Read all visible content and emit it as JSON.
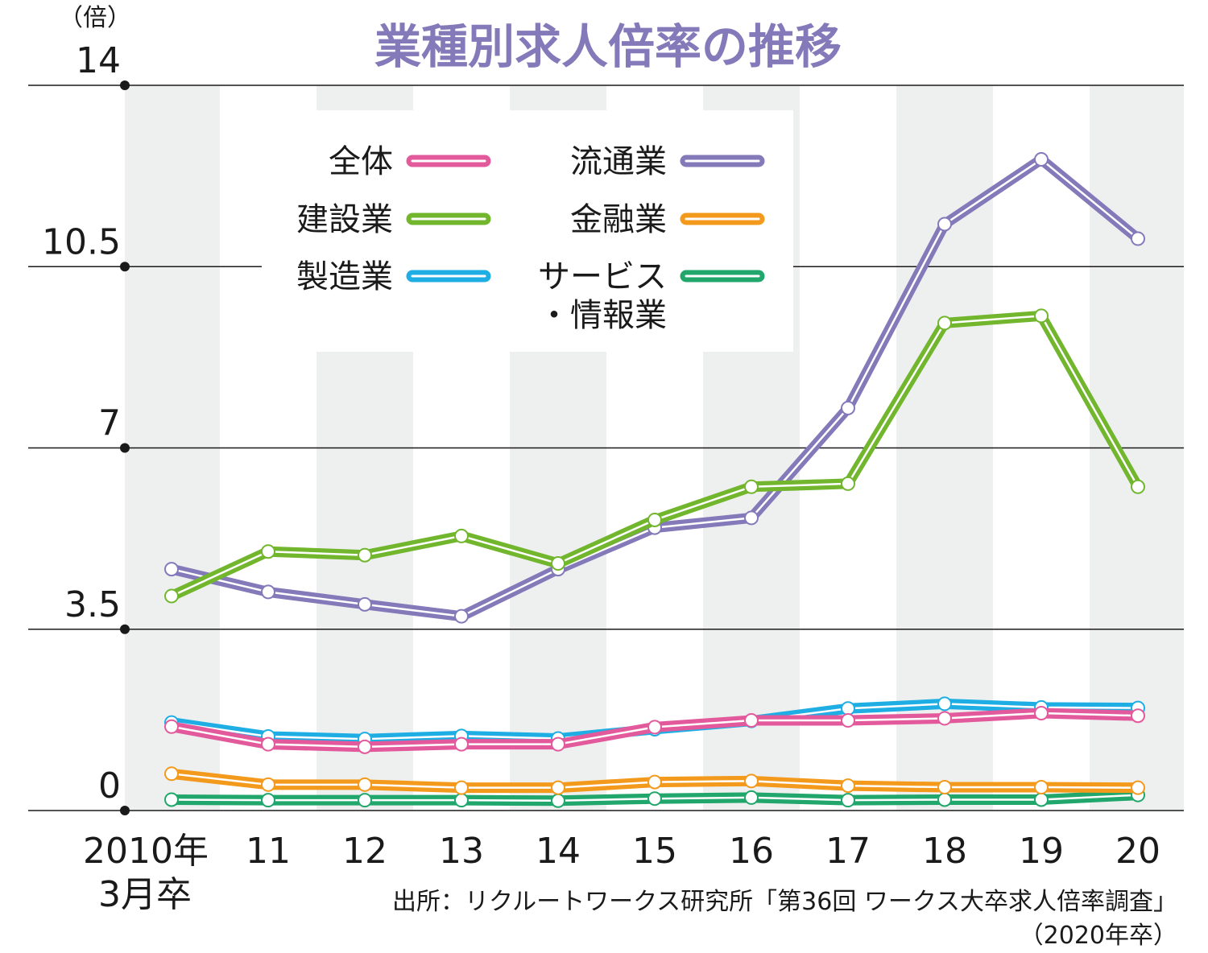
{
  "chart_data": {
    "type": "line",
    "title": "業種別求人倍率の推移",
    "yunit": "（倍）",
    "x_labels": [
      "2010年",
      "11",
      "12",
      "13",
      "14",
      "15",
      "16",
      "17",
      "18",
      "19",
      "20"
    ],
    "x_label_sub": "3月卒",
    "y_ticks": [
      "0",
      "3.5",
      "7",
      "10.5",
      "14"
    ],
    "y_tick_values": [
      0,
      3.5,
      7,
      10.5,
      14
    ],
    "ylim": [
      0,
      14
    ],
    "grid": "horizontal",
    "background": "alternating-column-bands",
    "series": [
      {
        "name": "流通業",
        "color": "#8479b9",
        "values": [
          4.66,
          4.22,
          3.98,
          3.75,
          4.66,
          5.46,
          5.65,
          7.77,
          11.32,
          12.57,
          11.04
        ]
      },
      {
        "name": "建設業",
        "color": "#72b62e",
        "values": [
          4.14,
          5.0,
          4.93,
          5.3,
          4.77,
          5.61,
          6.25,
          6.31,
          9.41,
          9.55,
          6.25
        ]
      },
      {
        "name": "製造業",
        "color": "#1eaee3",
        "values": [
          1.7,
          1.43,
          1.38,
          1.44,
          1.39,
          1.57,
          1.73,
          1.97,
          2.06,
          1.99,
          1.98
        ]
      },
      {
        "name": "全体",
        "color": "#e35a9c",
        "values": [
          1.62,
          1.28,
          1.23,
          1.28,
          1.28,
          1.61,
          1.74,
          1.74,
          1.78,
          1.88,
          1.83
        ]
      },
      {
        "name": "金融業",
        "color": "#f39a1d",
        "values": [
          0.71,
          0.5,
          0.5,
          0.44,
          0.44,
          0.55,
          0.57,
          0.48,
          0.45,
          0.45,
          0.44
        ]
      },
      {
        "name": "サービス・情報業",
        "color": "#21a66b",
        "values": [
          0.21,
          0.2,
          0.2,
          0.2,
          0.19,
          0.23,
          0.25,
          0.2,
          0.21,
          0.21,
          0.3
        ]
      }
    ],
    "legend": {
      "placement": "top-center",
      "rows": [
        [
          {
            "label": "全体",
            "color": "#e35a9c"
          },
          {
            "label": "流通業",
            "color": "#8479b9"
          }
        ],
        [
          {
            "label": "建設業",
            "color": "#72b62e"
          },
          {
            "label": "金融業",
            "color": "#f39a1d"
          }
        ],
        [
          {
            "label": "製造業",
            "color": "#1eaee3"
          },
          {
            "label": "サービス",
            "label2": "・情報業",
            "color": "#21a66b"
          }
        ]
      ]
    },
    "source_line1": "出所：リクルートワークス研究所「第36回 ワークス大卒求人倍率調査」",
    "source_line2": "（2020年卒）"
  }
}
